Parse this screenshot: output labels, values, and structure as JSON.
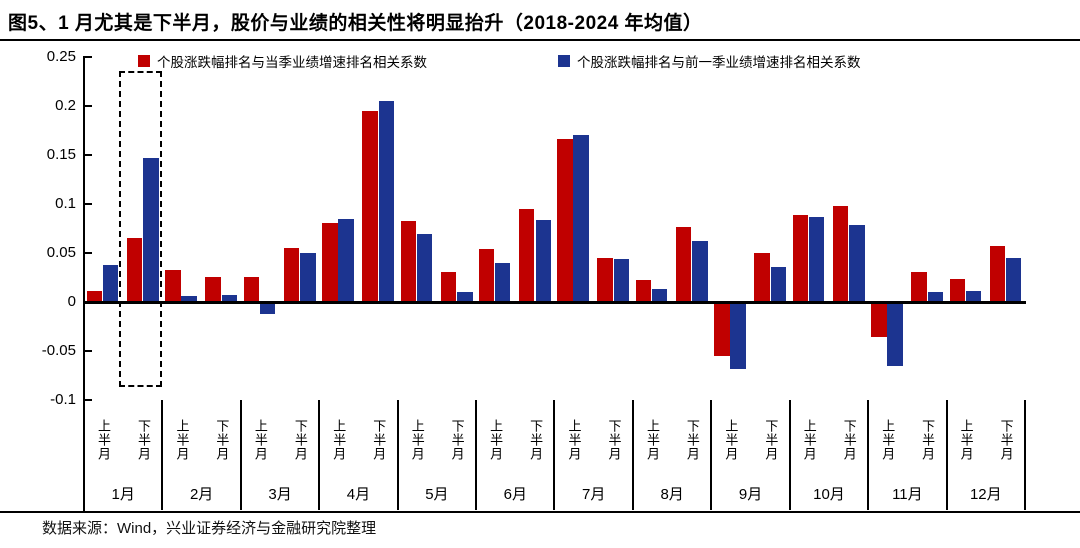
{
  "title": "图5、1 月尤其是下半月，股价与业绩的相关性将明显抬升（2018-2024 年均值）",
  "source_note": "数据来源：Wind，兴业证券经济与金融研究院整理",
  "colors": {
    "series_current_quarter": "#C00000",
    "series_previous_quarter": "#1C3490",
    "axis": "#000000",
    "highlight_border": "#000000"
  },
  "chart_data": {
    "type": "bar",
    "title": "图5、1 月尤其是下半月，股价与业绩的相关性将明显抬升（2018-2024 年均值）",
    "months": [
      "1月",
      "2月",
      "3月",
      "4月",
      "5月",
      "6月",
      "7月",
      "8月",
      "9月",
      "10月",
      "11月",
      "12月"
    ],
    "half_labels": [
      "上半月",
      "下半月"
    ],
    "categories": [
      "1月上半月",
      "1月下半月",
      "2月上半月",
      "2月下半月",
      "3月上半月",
      "3月下半月",
      "4月上半月",
      "4月下半月",
      "5月上半月",
      "5月下半月",
      "6月上半月",
      "6月下半月",
      "7月上半月",
      "7月下半月",
      "8月上半月",
      "8月下半月",
      "9月上半月",
      "9月下半月",
      "10月上半月",
      "10月下半月",
      "11月上半月",
      "11月下半月",
      "12月上半月",
      "12月下半月"
    ],
    "series": [
      {
        "name": "个股涨跌幅排名与当季业绩增速排名相关系数",
        "color": "#C00000",
        "values": [
          0.011,
          0.065,
          0.033,
          0.026,
          0.026,
          0.055,
          0.081,
          0.195,
          0.083,
          0.031,
          0.054,
          0.095,
          0.166,
          0.045,
          0.022,
          0.077,
          -0.055,
          0.05,
          0.089,
          0.098,
          -0.036,
          0.031,
          0.023,
          0.057
        ]
      },
      {
        "name": "个股涨跌幅排名与前一季业绩增速排名相关系数",
        "color": "#1C3490",
        "values": [
          0.038,
          0.147,
          0.006,
          0.007,
          -0.012,
          0.05,
          0.085,
          0.205,
          0.069,
          0.01,
          0.04,
          0.084,
          0.17,
          0.044,
          0.013,
          0.062,
          -0.068,
          0.036,
          0.087,
          0.079,
          -0.065,
          0.01,
          0.011,
          0.045
        ]
      }
    ],
    "ylim": [
      -0.1,
      0.25
    ],
    "yticks": [
      0.25,
      0.2,
      0.15,
      0.1,
      0.05,
      0,
      -0.05,
      -0.1
    ],
    "ytick_labels": [
      "0.25",
      "0.2",
      "0.15",
      "0.1",
      "0.05",
      "0",
      "-0.05",
      "-0.1"
    ],
    "grid": false,
    "legend_position": "top-inside",
    "highlight": {
      "target": "1月下半月",
      "style": "dashed-box"
    }
  }
}
